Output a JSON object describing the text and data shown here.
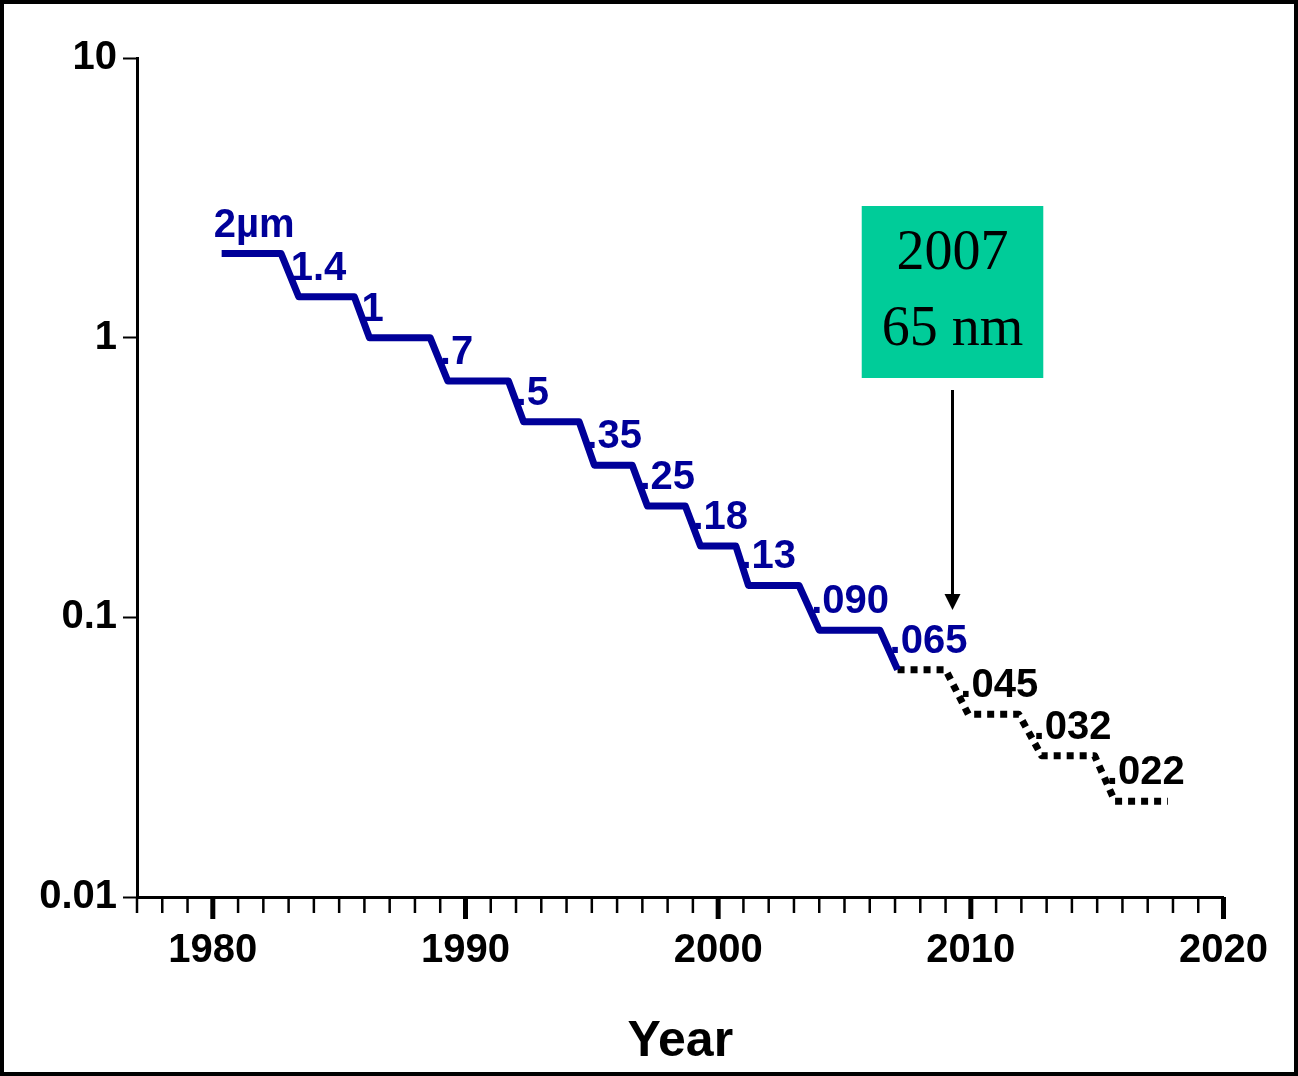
{
  "chart_data": {
    "type": "line",
    "xlabel": "Year",
    "log": "y",
    "grid": false,
    "legend": false,
    "marker": "none",
    "xlim": [
      1977,
      2020
    ],
    "ylim": [
      0.01,
      10
    ],
    "yticks": [
      {
        "value": 10,
        "label": "10"
      },
      {
        "value": 1,
        "label": "1"
      },
      {
        "value": 0.1,
        "label": "0.1"
      },
      {
        "value": 0.01,
        "label": "0.01"
      }
    ],
    "xticks": [
      {
        "value": 1977,
        "label": null
      },
      {
        "value": 1978,
        "label": null
      },
      {
        "value": 1979,
        "label": null
      },
      1980,
      {
        "value": 1981,
        "label": null
      },
      {
        "value": 1982,
        "label": null
      },
      {
        "value": 1983,
        "label": null
      },
      {
        "value": 1984,
        "label": null
      },
      {
        "value": 1985,
        "label": null
      },
      {
        "value": 1986,
        "label": null
      },
      {
        "value": 1987,
        "label": null
      },
      {
        "value": 1988,
        "label": null
      },
      {
        "value": 1989,
        "label": null
      },
      1990,
      {
        "value": 1991,
        "label": null
      },
      {
        "value": 1992,
        "label": null
      },
      {
        "value": 1993,
        "label": null
      },
      {
        "value": 1994,
        "label": null
      },
      {
        "value": 1995,
        "label": null
      },
      {
        "value": 1996,
        "label": null
      },
      {
        "value": 1997,
        "label": null
      },
      {
        "value": 1998,
        "label": null
      },
      {
        "value": 1999,
        "label": null
      },
      2000,
      {
        "value": 2001,
        "label": null
      },
      {
        "value": 2002,
        "label": null
      },
      {
        "value": 2003,
        "label": null
      },
      {
        "value": 2004,
        "label": null
      },
      {
        "value": 2005,
        "label": null
      },
      {
        "value": 2006,
        "label": null
      },
      {
        "value": 2007,
        "label": null
      },
      {
        "value": 2008,
        "label": null
      },
      {
        "value": 2009,
        "label": null
      },
      2010,
      {
        "value": 2011,
        "label": null
      },
      {
        "value": 2012,
        "label": null
      },
      {
        "value": 2013,
        "label": null
      },
      {
        "value": 2014,
        "label": null
      },
      {
        "value": 2015,
        "label": null
      },
      {
        "value": 2016,
        "label": null
      },
      {
        "value": 2017,
        "label": null
      },
      {
        "value": 2018,
        "label": null
      },
      {
        "value": 2019,
        "label": null
      },
      2020
    ],
    "series": [
      {
        "color": "#000099",
        "line_style": "solid",
        "x": [
          1980.35,
          1982.7,
          1983.4,
          1985.6,
          1986.2,
          1988.6,
          1989.3,
          1991.7,
          1992.3,
          1994.5,
          1995.1,
          1996.6,
          1997.2,
          1998.7,
          1999.3,
          2000.7,
          2001.2,
          2003.2,
          2004.0,
          2006.4,
          2007.1
        ],
        "values": [
          2,
          2,
          1.4,
          1.4,
          1,
          1,
          0.7,
          0.7,
          0.5,
          0.5,
          0.35,
          0.35,
          0.25,
          0.25,
          0.18,
          0.18,
          0.13,
          0.13,
          0.09,
          0.09,
          0.065
        ],
        "value_labels": [
          "2µm",
          null,
          "1.4",
          null,
          "1",
          null,
          ".7",
          null,
          ".5",
          null,
          ".35",
          null,
          ".25",
          null,
          ".18",
          null,
          ".13",
          null,
          ".090",
          null,
          ".065"
        ]
      },
      {
        "color": "#000000",
        "line_style": "dotted",
        "x": [
          2007.1,
          2009.0,
          2009.9,
          2011.9,
          2012.8,
          2014.9,
          2015.7,
          2017.8
        ],
        "values": [
          0.065,
          0.065,
          0.045,
          0.045,
          0.032,
          0.032,
          0.022,
          0.022
        ],
        "value_labels": [
          null,
          null,
          ".045",
          null,
          ".032",
          null,
          ".022",
          null
        ]
      }
    ],
    "annotations": [
      "2007\n65 nm"
    ]
  }
}
